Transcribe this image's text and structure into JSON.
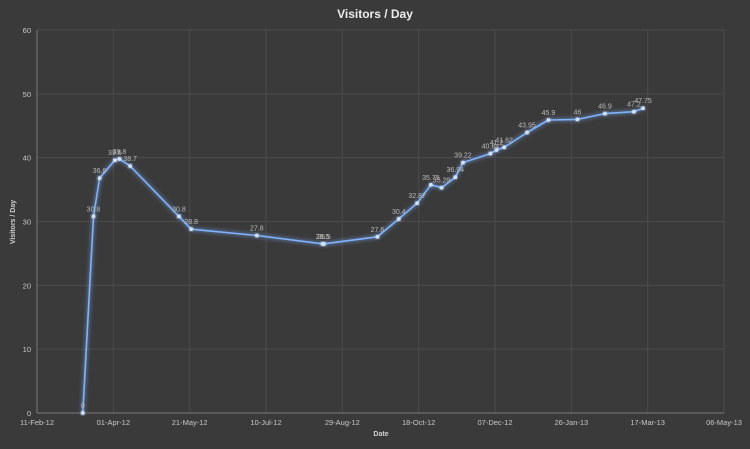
{
  "chart_data": {
    "type": "line",
    "title": "Visitors / Day",
    "xlabel": "Date",
    "ylabel": "Visitors / Day",
    "ylim": [
      0,
      60
    ],
    "yticks": [
      0,
      10,
      20,
      30,
      40,
      50,
      60
    ],
    "xlim": [
      "2012-02-11",
      "2013-05-06"
    ],
    "xticks": [
      {
        "date": "2012-02-11",
        "label": "11-Feb-12"
      },
      {
        "date": "2012-04-01",
        "label": "01-Apr-12"
      },
      {
        "date": "2012-05-21",
        "label": "21-May-12"
      },
      {
        "date": "2012-07-10",
        "label": "10-Jul-12"
      },
      {
        "date": "2012-08-29",
        "label": "29-Aug-12"
      },
      {
        "date": "2012-10-18",
        "label": "18-Oct-12"
      },
      {
        "date": "2012-12-07",
        "label": "07-Dec-12"
      },
      {
        "date": "2013-01-26",
        "label": "26-Jan-13"
      },
      {
        "date": "2013-03-17",
        "label": "17-Mar-13"
      },
      {
        "date": "2013-05-06",
        "label": "06-May-13"
      }
    ],
    "grid": true,
    "line_color": "#7fb2ff",
    "series": [
      {
        "points": [
          {
            "x": "2012-03-12",
            "y": 0,
            "label": "0"
          },
          {
            "x": "2012-03-19",
            "y": 30.8,
            "label": "30.8"
          },
          {
            "x": "2012-03-23",
            "y": 36.8,
            "label": "36.8"
          },
          {
            "x": "2012-04-02",
            "y": 39.6,
            "label": "39.6"
          },
          {
            "x": "2012-04-05",
            "y": 39.8,
            "label": "39.8"
          },
          {
            "x": "2012-04-12",
            "y": 38.7,
            "label": "38.7"
          },
          {
            "x": "2012-05-14",
            "y": 30.8,
            "label": "30.8"
          },
          {
            "x": "2012-05-22",
            "y": 28.8,
            "label": "28.8"
          },
          {
            "x": "2012-07-04",
            "y": 27.8,
            "label": "27.8"
          },
          {
            "x": "2012-08-16",
            "y": 26.5,
            "label": "26.5"
          },
          {
            "x": "2012-08-17",
            "y": 26.5,
            "label": "26.5"
          },
          {
            "x": "2012-09-21",
            "y": 27.6,
            "label": "27.6"
          },
          {
            "x": "2012-10-05",
            "y": 30.4,
            "label": "30.4"
          },
          {
            "x": "2012-10-17",
            "y": 32.87,
            "label": "32.87"
          },
          {
            "x": "2012-10-26",
            "y": 35.75,
            "label": "35.75"
          },
          {
            "x": "2012-11-02",
            "y": 35.29,
            "label": "35.29"
          },
          {
            "x": "2012-11-11",
            "y": 36.94,
            "label": "36.94"
          },
          {
            "x": "2012-11-16",
            "y": 39.22,
            "label": "39.22"
          },
          {
            "x": "2012-12-04",
            "y": 40.64,
            "label": "40.64"
          },
          {
            "x": "2012-12-08",
            "y": 41.2,
            "label": "41.2"
          },
          {
            "x": "2012-12-13",
            "y": 41.62,
            "label": "41.62"
          },
          {
            "x": "2012-12-28",
            "y": 43.95,
            "label": "43.95"
          },
          {
            "x": "2013-01-11",
            "y": 45.9,
            "label": "45.9"
          },
          {
            "x": "2013-01-30",
            "y": 46,
            "label": "46"
          },
          {
            "x": "2013-02-17",
            "y": 46.9,
            "label": "46.9"
          },
          {
            "x": "2013-03-08",
            "y": 47.2,
            "label": "47.2"
          },
          {
            "x": "2013-03-14",
            "y": 47.75,
            "label": "47.75"
          }
        ]
      }
    ]
  }
}
